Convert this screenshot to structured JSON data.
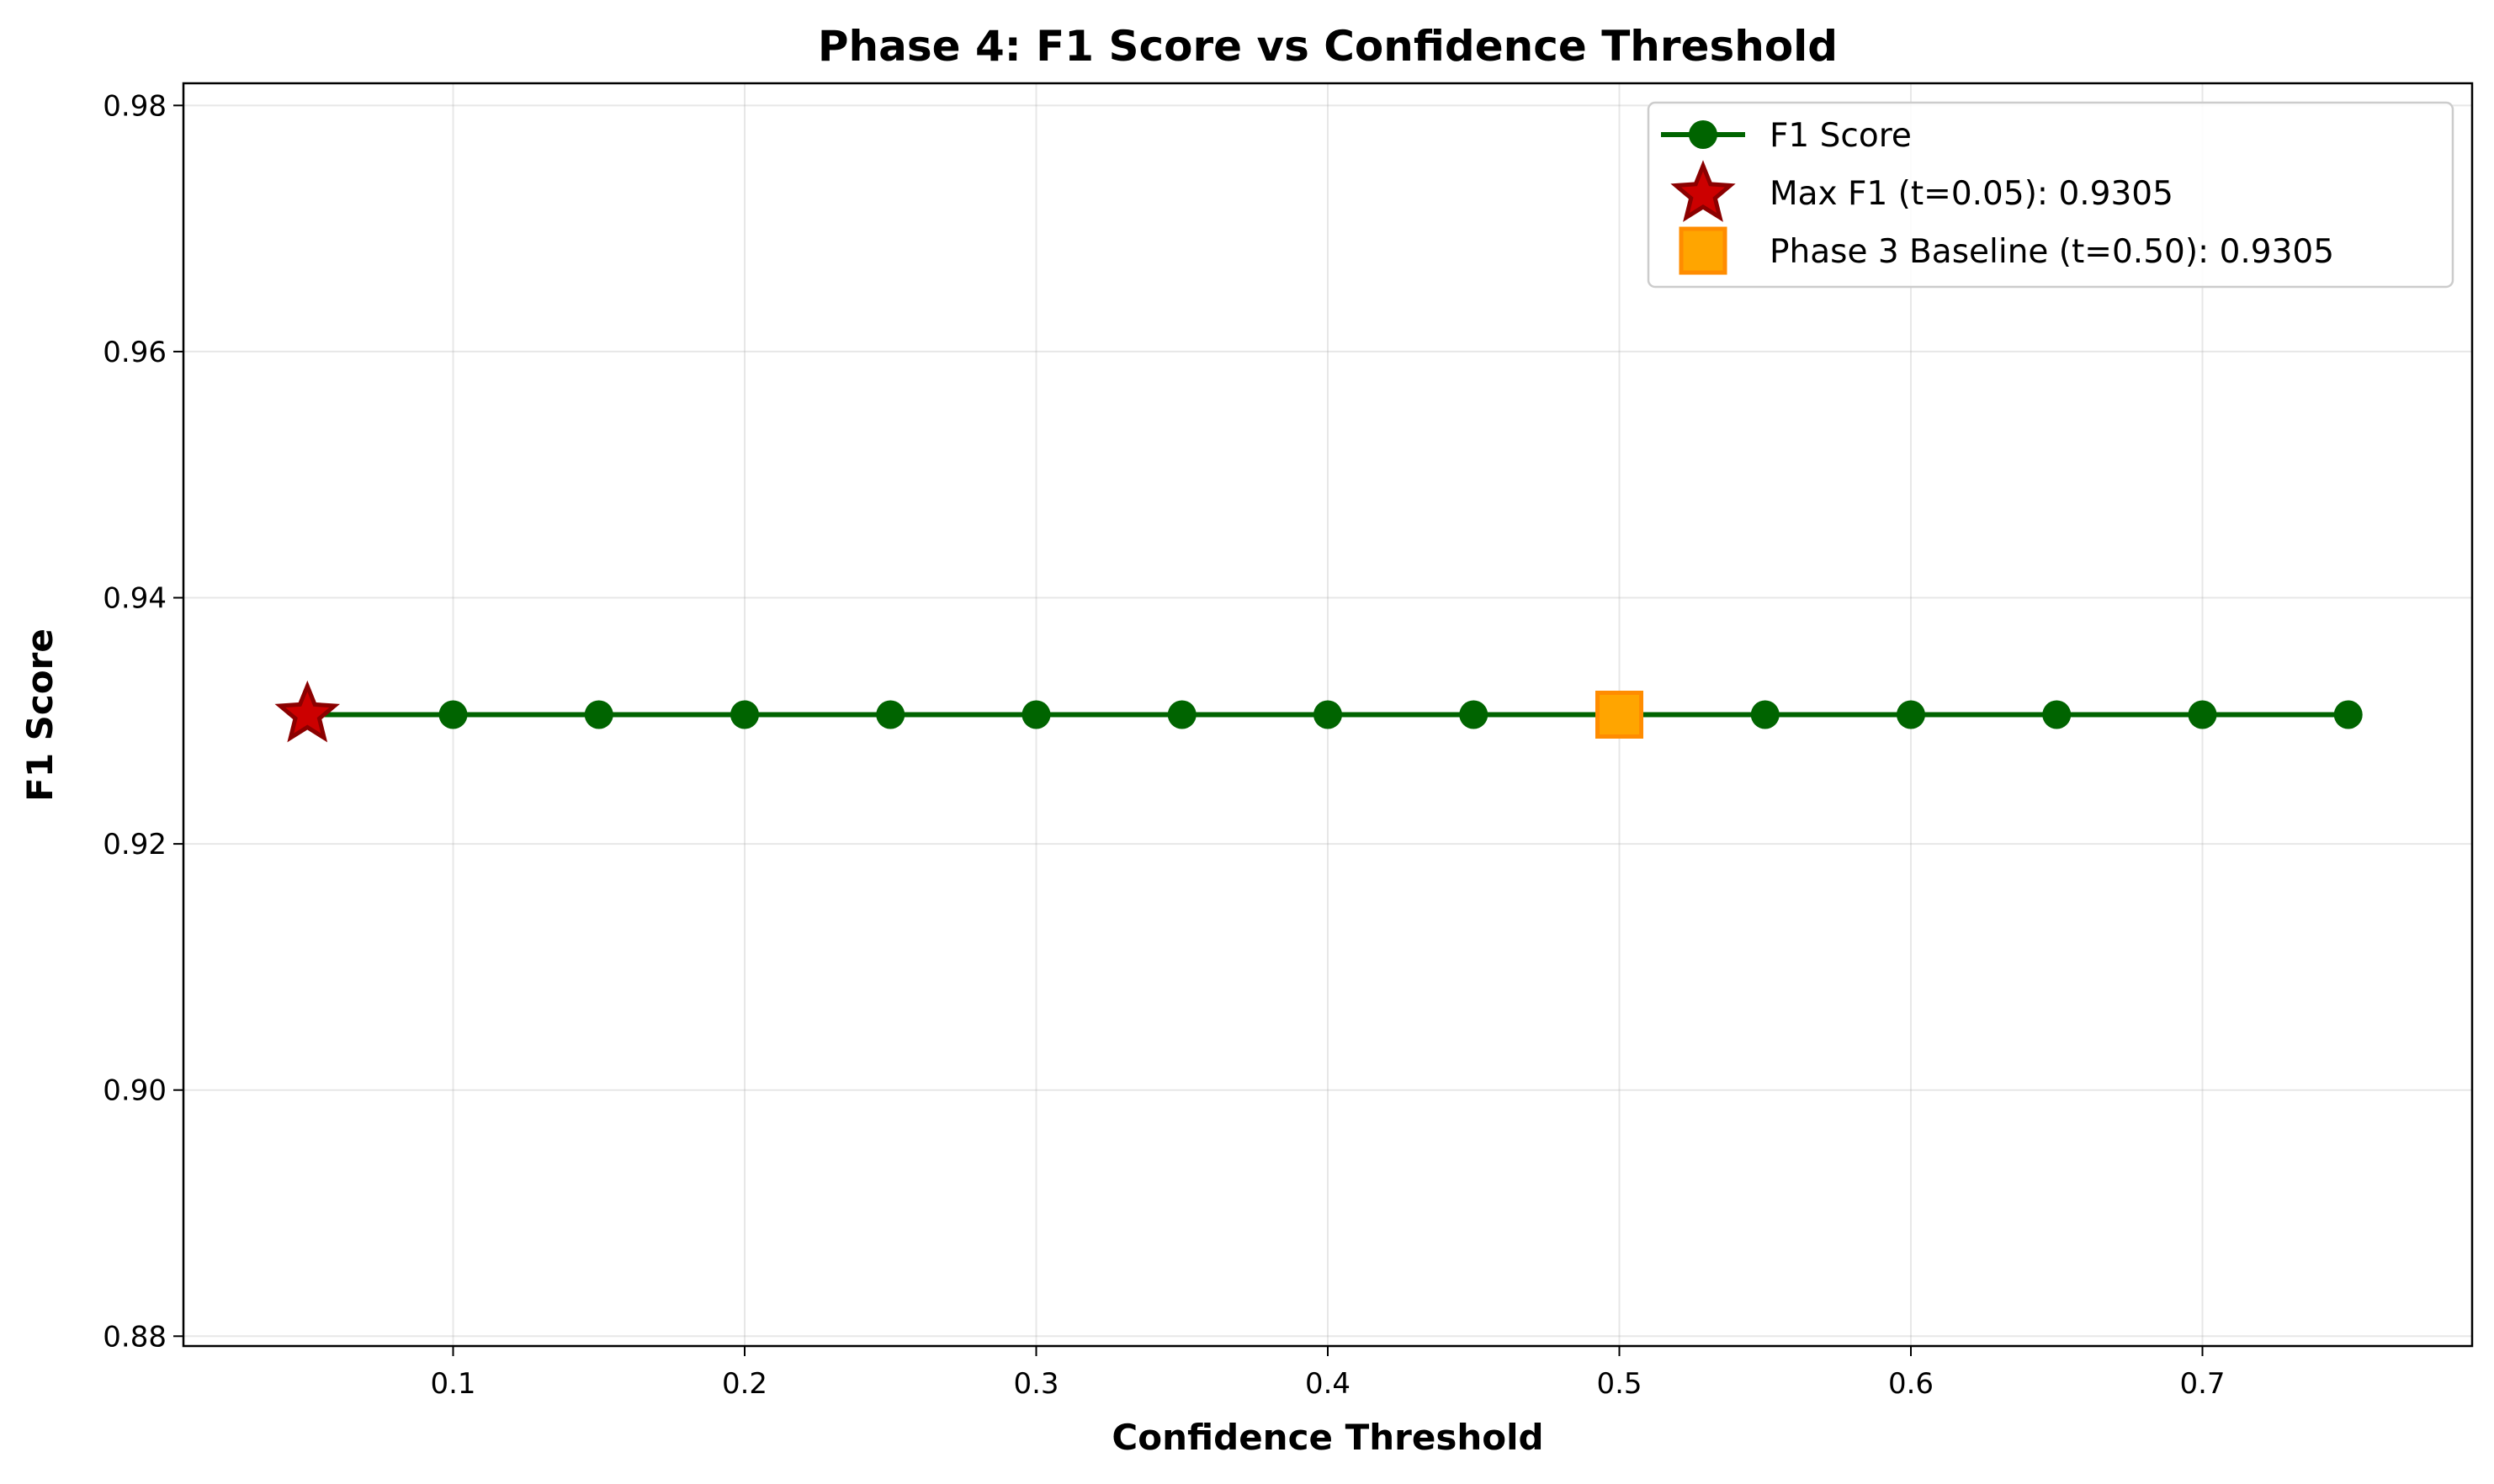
{
  "chart_data": {
    "type": "line",
    "title": "Phase 4: F1 Score vs Confidence Threshold",
    "xlabel": "Confidence Threshold",
    "ylabel": "F1 Score",
    "xlim": [
      0.0075,
      0.7925
    ],
    "ylim": [
      0.8792,
      0.9818
    ],
    "xticks": [
      0.1,
      0.2,
      0.3,
      0.4,
      0.5,
      0.6,
      0.7
    ],
    "xtick_labels": [
      "0.1",
      "0.2",
      "0.3",
      "0.4",
      "0.5",
      "0.6",
      "0.7"
    ],
    "yticks": [
      0.88,
      0.9,
      0.92,
      0.94,
      0.96,
      0.98
    ],
    "ytick_labels": [
      "0.88",
      "0.90",
      "0.92",
      "0.94",
      "0.96",
      "0.98"
    ],
    "grid": true,
    "legend_position": "top-right",
    "series": [
      {
        "name": "F1 Score",
        "kind": "line-with-circle-markers",
        "color": "#006400",
        "x": [
          0.05,
          0.1,
          0.15,
          0.2,
          0.25,
          0.3,
          0.35,
          0.4,
          0.45,
          0.5,
          0.55,
          0.6,
          0.65,
          0.7,
          0.75
        ],
        "y": [
          0.9305,
          0.9305,
          0.9305,
          0.9305,
          0.9305,
          0.9305,
          0.9305,
          0.9305,
          0.9305,
          0.9305,
          0.9305,
          0.9305,
          0.9305,
          0.9305,
          0.9305
        ]
      },
      {
        "name": "Max F1 (t=0.05): 0.9305",
        "kind": "star-marker",
        "color": "#cc0000",
        "edge_color": "#8b0000",
        "x": [
          0.05
        ],
        "y": [
          0.9305
        ]
      },
      {
        "name": "Phase 3 Baseline (t=0.50): 0.9305",
        "kind": "square-marker",
        "color": "#ffa500",
        "edge_color": "#ff8c00",
        "x": [
          0.5
        ],
        "y": [
          0.9305
        ]
      }
    ]
  }
}
